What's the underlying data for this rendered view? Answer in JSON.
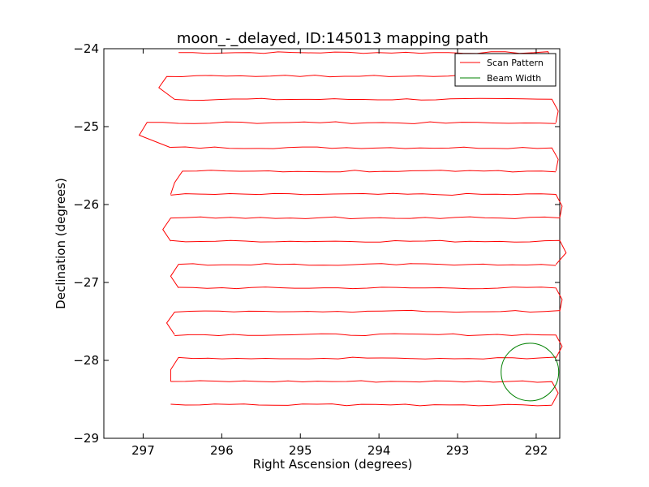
{
  "chart_data": {
    "type": "line",
    "title": "moon_-_delayed, ID:145013 mapping path",
    "xlabel": "Right Ascension (degrees)",
    "ylabel": "Declination (degrees)",
    "xlim": [
      297.5,
      291.7
    ],
    "ylim": [
      -29,
      -24
    ],
    "xticks": [
      297,
      296,
      295,
      294,
      293,
      292
    ],
    "xtick_labels": [
      "297",
      "296",
      "295",
      "294",
      "293",
      "292"
    ],
    "yticks": [
      -24,
      -25,
      -26,
      -27,
      -28,
      -29
    ],
    "ytick_labels": [
      "−24",
      "−25",
      "−26",
      "−27",
      "−28",
      "−29"
    ],
    "legend": {
      "placement": "top-right",
      "entries": [
        {
          "label": "Scan Pattern",
          "color": "#ff0000"
        },
        {
          "label": "Beam Width",
          "color": "#008000"
        }
      ]
    },
    "series": [
      {
        "name": "Scan Pattern",
        "color": "#ff0000",
        "rows": [
          {
            "dec": -24.05,
            "ra_left": 296.55,
            "ra_right": 291.85
          },
          {
            "dec": -24.35,
            "ra_left": 296.7,
            "ra_right": 291.8
          },
          {
            "dec": -24.65,
            "ra_left": 296.6,
            "ra_right": 291.8
          },
          {
            "dec": -24.95,
            "ra_left": 296.95,
            "ra_right": 291.75
          },
          {
            "dec": -25.27,
            "ra_left": 296.65,
            "ra_right": 291.8
          },
          {
            "dec": -25.57,
            "ra_left": 296.5,
            "ra_right": 291.75
          },
          {
            "dec": -25.87,
            "ra_left": 296.65,
            "ra_right": 291.75
          },
          {
            "dec": -26.17,
            "ra_left": 296.65,
            "ra_right": 291.7
          },
          {
            "dec": -26.47,
            "ra_left": 296.65,
            "ra_right": 291.7
          },
          {
            "dec": -26.77,
            "ra_left": 296.55,
            "ra_right": 291.75
          },
          {
            "dec": -27.07,
            "ra_left": 296.55,
            "ra_right": 291.75
          },
          {
            "dec": -27.37,
            "ra_left": 296.6,
            "ra_right": 291.7
          },
          {
            "dec": -27.67,
            "ra_left": 296.6,
            "ra_right": 291.75
          },
          {
            "dec": -27.97,
            "ra_left": 296.55,
            "ra_right": 291.75
          },
          {
            "dec": -28.27,
            "ra_left": 296.65,
            "ra_right": 291.8
          },
          {
            "dec": -28.57,
            "ra_left": 296.65,
            "ra_right": 291.8
          }
        ]
      },
      {
        "name": "Beam Width",
        "color": "#008000",
        "center": {
          "ra": 292.08,
          "dec": -28.15
        },
        "radius_deg": 0.37
      }
    ]
  }
}
